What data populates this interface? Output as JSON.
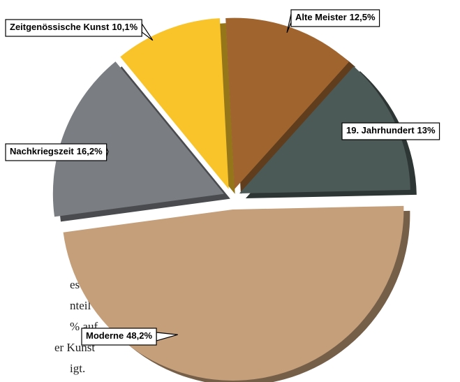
{
  "chart_data": {
    "type": "pie",
    "categories": [
      "Alte Meister",
      "19. Jahrhundert",
      "Moderne",
      "Nachkriegszeit",
      "Zeitgenössische Kunst"
    ],
    "values": [
      12.5,
      13,
      48.2,
      16.2,
      10.1
    ],
    "value_labels": [
      "12,5%",
      "13%",
      "48,2%",
      "16,2%",
      "10,1%"
    ],
    "colors": [
      "#a0652f",
      "#4b5a57",
      "#c49f7a",
      "#7a7d82",
      "#f8c42a"
    ],
    "note_lines": [
      "%",
      "es",
      "nteil",
      "% auf",
      "er Kunst",
      "igt."
    ]
  }
}
